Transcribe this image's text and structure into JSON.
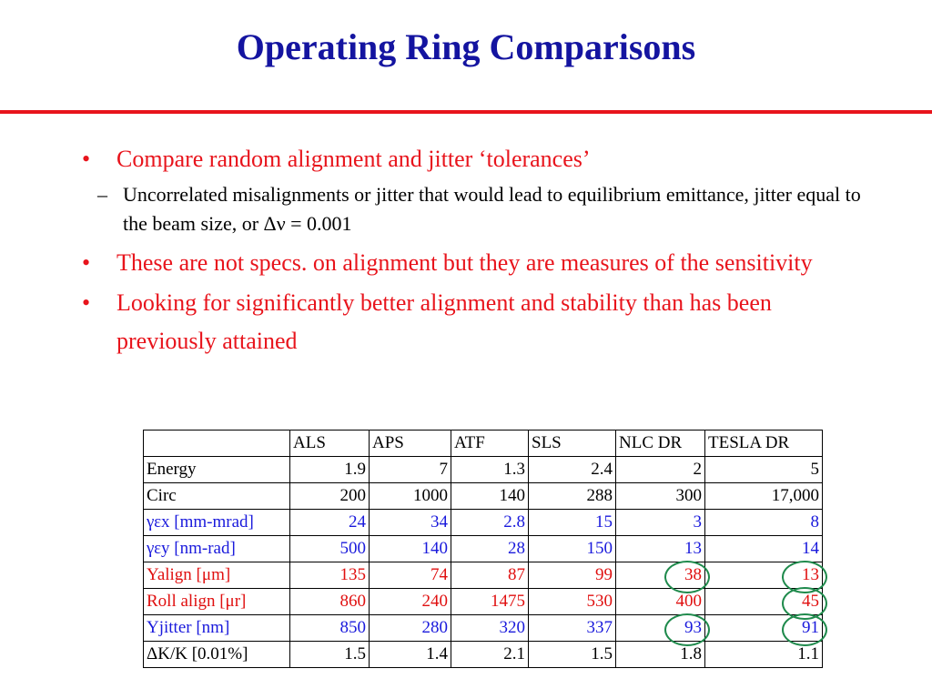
{
  "header": {
    "title": "Operating Ring Comparisons"
  },
  "bullets": [
    {
      "text": "Compare random alignment and jitter ‘tolerances’",
      "sub": [
        "Uncorrelated misalignments or jitter that would lead to equilibrium emittance, jitter equal to the beam size, or Δν = 0.001"
      ]
    },
    {
      "text": "These are not specs. on alignment but they are measures of the sensitivity",
      "sub": []
    },
    {
      "text": "Looking for significantly better alignment and stability than has been previously attained",
      "sub": []
    }
  ],
  "table": {
    "header": [
      "ALS",
      "APS",
      "ATF",
      "SLS",
      "NLC DR",
      "TESLA DR"
    ],
    "rows": [
      {
        "label": "Energy",
        "color": "#000000",
        "cells": [
          "1.9",
          "7",
          "1.3",
          "2.4",
          "2",
          "5"
        ]
      },
      {
        "label": "Circ",
        "color": "#000000",
        "cells": [
          "200",
          "1000",
          "140",
          "288",
          "300",
          "17,000"
        ]
      },
      {
        "label": "γεx [mm-mrad]",
        "color": "#1a1adc",
        "cells": [
          "24",
          "34",
          "2.8",
          "15",
          "3",
          "8"
        ]
      },
      {
        "label": "γεy [nm-rad]",
        "color": "#1a1adc",
        "cells": [
          "500",
          "140",
          "28",
          "150",
          "13",
          "14"
        ]
      },
      {
        "label": "Yalign [μm]",
        "color": "#e01010",
        "cells": [
          "135",
          "74",
          "87",
          "99",
          "38",
          "13"
        ]
      },
      {
        "label": "Roll align [μr]",
        "color": "#e01010",
        "cells": [
          "860",
          "240",
          "1475",
          "530",
          "400",
          "45"
        ]
      },
      {
        "label": "Yjitter [nm]",
        "color": "#1a1adc",
        "cells": [
          "850",
          "280",
          "320",
          "337",
          "93",
          "91"
        ]
      },
      {
        "label": "ΔK/K [0.01%]",
        "color": "#000000",
        "cells": [
          "1.5",
          "1.4",
          "2.1",
          "1.5",
          "1.8",
          "1.1"
        ]
      }
    ]
  }
}
